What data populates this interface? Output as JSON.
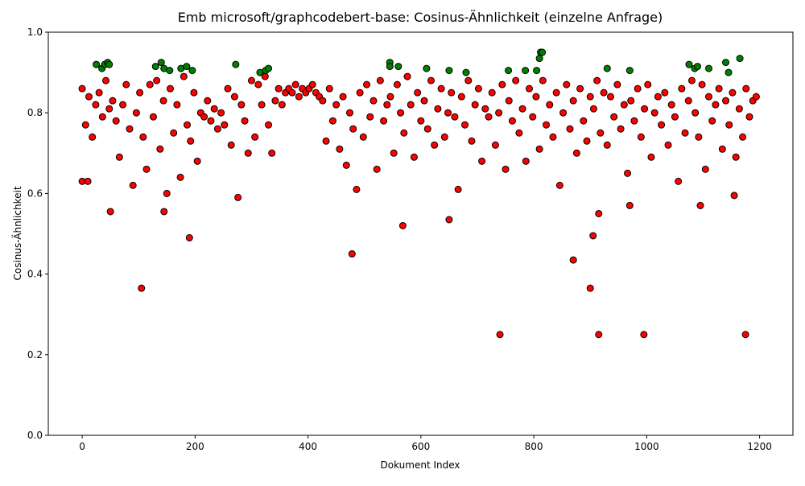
{
  "chart_data": {
    "type": "scatter",
    "title": "Emb microsoft/graphcodebert-base: Cosinus-Ähnlichkeit (einzelne Anfrage)",
    "x_label": "Dokument Index",
    "y_label": "Cosinus-Ähnlichkeit",
    "xlim": [
      -60,
      1259
    ],
    "ylim": [
      0,
      1
    ],
    "xticks": [
      0,
      200,
      400,
      600,
      800,
      1000,
      1200
    ],
    "yticks": [
      {
        "value": 0,
        "label": "0.0"
      },
      0.2,
      0.4,
      0.6,
      0.8,
      {
        "value": 1,
        "label": "1.0"
      }
    ],
    "series": [
      {
        "color": "#ff0000",
        "x": [
          0,
          6,
          12,
          18,
          24,
          30,
          36,
          42,
          48,
          54,
          60,
          66,
          72,
          78,
          84,
          90,
          96,
          102,
          108,
          114,
          120,
          126,
          132,
          138,
          144,
          150,
          156,
          162,
          168,
          174,
          180,
          186,
          192,
          198,
          204,
          210,
          216,
          222,
          228,
          234,
          240,
          246,
          252,
          258,
          264,
          270,
          276,
          282,
          288,
          294,
          300,
          306,
          312,
          318,
          324,
          330,
          336,
          342,
          348,
          354,
          360,
          366,
          372,
          378,
          384,
          390,
          396,
          402,
          408,
          414,
          420,
          426,
          432,
          438,
          444,
          450,
          456,
          462,
          468,
          474,
          480,
          486,
          492,
          498,
          504,
          510,
          516,
          522,
          528,
          534,
          540,
          546,
          552,
          558,
          564,
          570,
          576,
          582,
          588,
          594,
          600,
          606,
          612,
          618,
          624,
          630,
          636,
          642,
          648,
          654,
          660,
          666,
          672,
          678,
          684,
          690,
          696,
          702,
          708,
          714,
          720,
          726,
          732,
          738,
          744,
          750,
          756,
          762,
          768,
          774,
          780,
          786,
          792,
          798,
          804,
          810,
          816,
          822,
          828,
          834,
          840,
          846,
          852,
          858,
          864,
          870,
          876,
          882,
          888,
          894,
          900,
          906,
          912,
          918,
          924,
          930,
          936,
          942,
          948,
          954,
          960,
          966,
          972,
          978,
          984,
          990,
          996,
          1002,
          1008,
          1014,
          1020,
          1026,
          1032,
          1038,
          1044,
          1050,
          1056,
          1062,
          1068,
          1074,
          1080,
          1086,
          1092,
          1098,
          1104,
          1110,
          1116,
          1122,
          1128,
          1134,
          1140,
          1146,
          1152,
          1158,
          1164,
          1170,
          1176,
          1182,
          1188,
          1194,
          0,
          10,
          50,
          105,
          190,
          478,
          568,
          650,
          740,
          870,
          900,
          905,
          915,
          915,
          995,
          1175,
          1155,
          970,
          1095,
          145
        ],
        "values": [
          0.86,
          0.77,
          0.84,
          0.74,
          0.82,
          0.85,
          0.79,
          0.88,
          0.81,
          0.83,
          0.78,
          0.69,
          0.82,
          0.87,
          0.76,
          0.62,
          0.8,
          0.85,
          0.74,
          0.66,
          0.87,
          0.79,
          0.88,
          0.71,
          0.83,
          0.6,
          0.86,
          0.75,
          0.82,
          0.64,
          0.89,
          0.77,
          0.73,
          0.85,
          0.68,
          0.8,
          0.79,
          0.83,
          0.78,
          0.81,
          0.76,
          0.8,
          0.77,
          0.86,
          0.72,
          0.84,
          0.59,
          0.82,
          0.78,
          0.7,
          0.88,
          0.74,
          0.87,
          0.82,
          0.89,
          0.77,
          0.7,
          0.83,
          0.86,
          0.82,
          0.85,
          0.86,
          0.85,
          0.87,
          0.84,
          0.86,
          0.85,
          0.86,
          0.87,
          0.85,
          0.84,
          0.83,
          0.73,
          0.86,
          0.78,
          0.82,
          0.71,
          0.84,
          0.67,
          0.8,
          0.76,
          0.61,
          0.85,
          0.74,
          0.87,
          0.79,
          0.83,
          0.66,
          0.88,
          0.78,
          0.82,
          0.84,
          0.7,
          0.87,
          0.8,
          0.75,
          0.89,
          0.82,
          0.69,
          0.85,
          0.78,
          0.83,
          0.76,
          0.88,
          0.72,
          0.81,
          0.86,
          0.74,
          0.8,
          0.85,
          0.79,
          0.61,
          0.84,
          0.77,
          0.88,
          0.73,
          0.82,
          0.86,
          0.68,
          0.81,
          0.79,
          0.85,
          0.72,
          0.8,
          0.87,
          0.66,
          0.83,
          0.78,
          0.88,
          0.75,
          0.81,
          0.68,
          0.86,
          0.79,
          0.84,
          0.71,
          0.88,
          0.77,
          0.82,
          0.74,
          0.85,
          0.62,
          0.8,
          0.87,
          0.76,
          0.83,
          0.7,
          0.86,
          0.78,
          0.73,
          0.84,
          0.81,
          0.88,
          0.75,
          0.85,
          0.72,
          0.84,
          0.79,
          0.87,
          0.76,
          0.82,
          0.65,
          0.83,
          0.78,
          0.86,
          0.74,
          0.81,
          0.87,
          0.69,
          0.8,
          0.84,
          0.77,
          0.85,
          0.72,
          0.82,
          0.79,
          0.63,
          0.86,
          0.75,
          0.83,
          0.88,
          0.8,
          0.74,
          0.87,
          0.66,
          0.84,
          0.78,
          0.82,
          0.86,
          0.71,
          0.83,
          0.77,
          0.85,
          0.69,
          0.81,
          0.74,
          0.86,
          0.79,
          0.83,
          0.84,
          0.63,
          0.63,
          0.555,
          0.365,
          0.49,
          0.45,
          0.52,
          0.535,
          0.25,
          0.435,
          0.365,
          0.495,
          0.25,
          0.55,
          0.25,
          0.25,
          0.595,
          0.57,
          0.57,
          0.555
        ]
      },
      {
        "color": "#008000",
        "x": [
          25,
          35,
          40,
          45,
          48,
          130,
          140,
          145,
          155,
          175,
          185,
          195,
          272,
          315,
          325,
          330,
          545,
          545,
          560,
          610,
          650,
          680,
          755,
          785,
          805,
          810,
          812,
          815,
          930,
          970,
          1075,
          1085,
          1090,
          1110,
          1140,
          1145,
          1165
        ],
        "values": [
          0.92,
          0.91,
          0.92,
          0.925,
          0.92,
          0.915,
          0.925,
          0.91,
          0.905,
          0.91,
          0.915,
          0.905,
          0.92,
          0.9,
          0.905,
          0.91,
          0.925,
          0.915,
          0.915,
          0.91,
          0.905,
          0.9,
          0.905,
          0.905,
          0.905,
          0.935,
          0.95,
          0.95,
          0.91,
          0.905,
          0.92,
          0.91,
          0.915,
          0.91,
          0.925,
          0.9,
          0.935
        ]
      }
    ]
  }
}
